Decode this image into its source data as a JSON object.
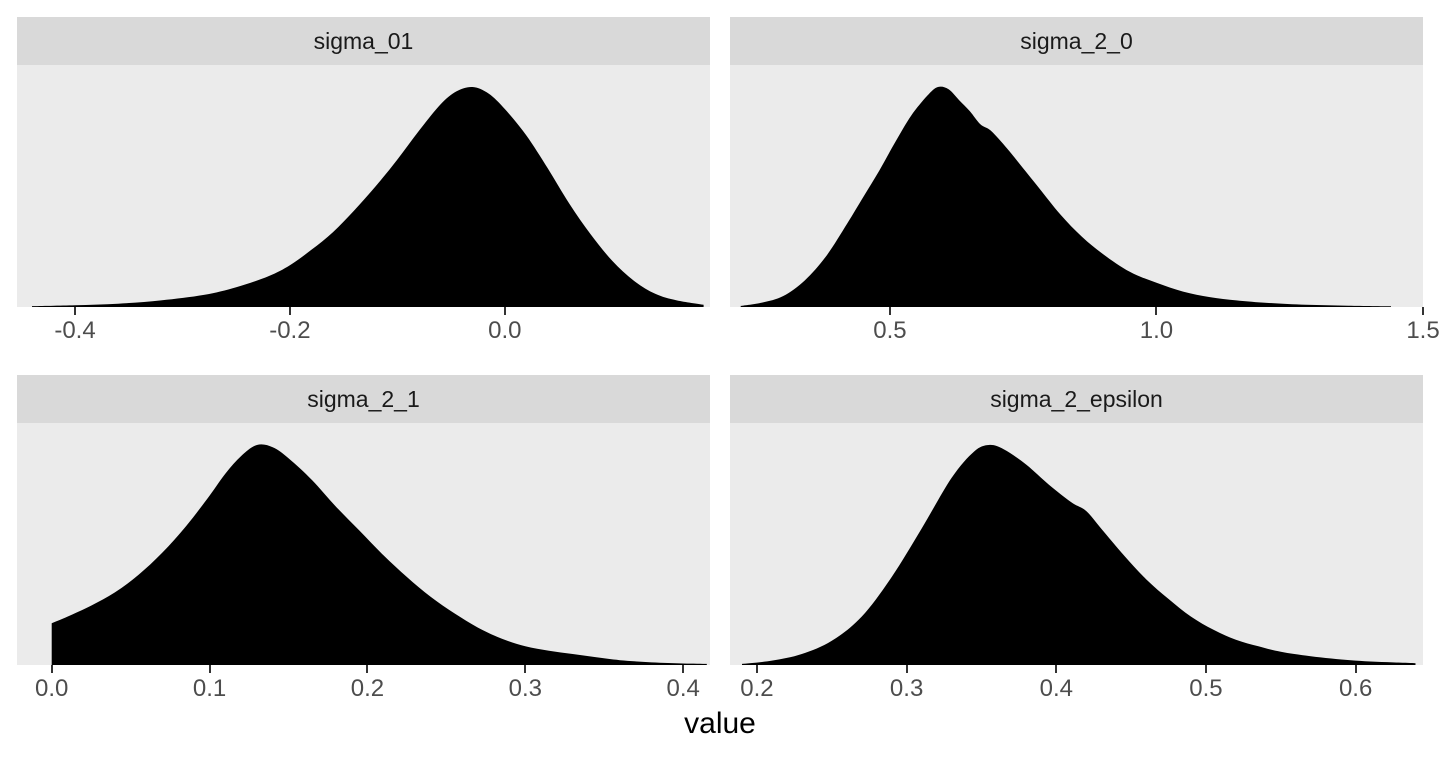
{
  "colors": {
    "strip_bg": "#d9d9d9",
    "panel_bg": "#ebebeb",
    "density_fill": "#000000",
    "tick_color": "#333333",
    "tick_label_color": "#4d4d4d"
  },
  "chart_data": {
    "type": "area",
    "subtype": "faceted-density",
    "layout": "2x2 facet grid, shared x-axis title, independent x scales",
    "title": "",
    "xlabel": "value",
    "ylabel": "",
    "y_normalized": true,
    "grid": false,
    "legend": "none",
    "facets": [
      {
        "title": "sigma_01",
        "xlim": [
          -0.454,
          0.191
        ],
        "ticks": [
          -0.4,
          -0.2,
          0.0
        ],
        "tick_labels": [
          "-0.4",
          "-0.2",
          "0.0"
        ],
        "x": [
          -0.44,
          -0.4,
          -0.36,
          -0.32,
          -0.28,
          -0.25,
          -0.22,
          -0.2,
          -0.18,
          -0.16,
          -0.14,
          -0.12,
          -0.1,
          -0.08,
          -0.06,
          -0.045,
          -0.03,
          -0.015,
          0.0,
          0.02,
          0.04,
          0.06,
          0.08,
          0.1,
          0.12,
          0.14,
          0.16,
          0.185
        ],
        "density": [
          0.004,
          0.008,
          0.015,
          0.03,
          0.055,
          0.09,
          0.14,
          0.19,
          0.26,
          0.34,
          0.44,
          0.55,
          0.67,
          0.8,
          0.92,
          0.98,
          1.0,
          0.97,
          0.9,
          0.78,
          0.63,
          0.47,
          0.33,
          0.21,
          0.12,
          0.06,
          0.03,
          0.01
        ]
      },
      {
        "title": "sigma_2_0",
        "xlim": [
          0.2,
          1.5
        ],
        "ticks": [
          0.5,
          1.0,
          1.5
        ],
        "tick_labels": [
          "0.5",
          "1.0",
          "1.5"
        ],
        "x": [
          0.22,
          0.26,
          0.3,
          0.34,
          0.38,
          0.42,
          0.45,
          0.48,
          0.51,
          0.54,
          0.57,
          0.59,
          0.61,
          0.63,
          0.65,
          0.67,
          0.69,
          0.72,
          0.75,
          0.78,
          0.82,
          0.86,
          0.9,
          0.95,
          1.0,
          1.05,
          1.1,
          1.15,
          1.2,
          1.28,
          1.36,
          1.44
        ],
        "density": [
          0.005,
          0.02,
          0.05,
          0.12,
          0.23,
          0.38,
          0.5,
          0.62,
          0.75,
          0.87,
          0.96,
          1.0,
          0.99,
          0.94,
          0.89,
          0.83,
          0.8,
          0.72,
          0.63,
          0.54,
          0.42,
          0.32,
          0.24,
          0.16,
          0.11,
          0.07,
          0.045,
          0.03,
          0.02,
          0.01,
          0.006,
          0.003
        ]
      },
      {
        "title": "sigma_2_1",
        "xlim": [
          -0.022,
          0.417
        ],
        "ticks": [
          0.0,
          0.1,
          0.2,
          0.3,
          0.4
        ],
        "tick_labels": [
          "0.0",
          "0.1",
          "0.2",
          "0.3",
          "0.4"
        ],
        "x": [
          0.0,
          0.01,
          0.025,
          0.04,
          0.055,
          0.07,
          0.085,
          0.1,
          0.11,
          0.12,
          0.13,
          0.14,
          0.15,
          0.165,
          0.18,
          0.195,
          0.21,
          0.225,
          0.24,
          0.255,
          0.27,
          0.285,
          0.3,
          0.315,
          0.33,
          0.345,
          0.36,
          0.38,
          0.4,
          0.415
        ],
        "density": [
          0.19,
          0.22,
          0.27,
          0.33,
          0.41,
          0.51,
          0.63,
          0.77,
          0.87,
          0.95,
          1.0,
          0.99,
          0.94,
          0.84,
          0.72,
          0.61,
          0.5,
          0.4,
          0.31,
          0.235,
          0.17,
          0.12,
          0.085,
          0.065,
          0.05,
          0.035,
          0.022,
          0.012,
          0.007,
          0.005
        ]
      },
      {
        "title": "sigma_2_epsilon",
        "xlim": [
          0.182,
          0.645
        ],
        "ticks": [
          0.2,
          0.3,
          0.4,
          0.5,
          0.6
        ],
        "tick_labels": [
          "0.2",
          "0.3",
          "0.4",
          "0.5",
          "0.6"
        ],
        "x": [
          0.19,
          0.21,
          0.23,
          0.25,
          0.27,
          0.29,
          0.31,
          0.33,
          0.345,
          0.355,
          0.365,
          0.38,
          0.395,
          0.41,
          0.42,
          0.43,
          0.445,
          0.46,
          0.475,
          0.49,
          0.505,
          0.52,
          0.535,
          0.55,
          0.57,
          0.6,
          0.64
        ],
        "density": [
          0.005,
          0.02,
          0.05,
          0.11,
          0.22,
          0.4,
          0.62,
          0.85,
          0.97,
          1.0,
          0.98,
          0.91,
          0.82,
          0.74,
          0.7,
          0.62,
          0.5,
          0.39,
          0.3,
          0.22,
          0.16,
          0.115,
          0.085,
          0.06,
          0.04,
          0.02,
          0.008
        ]
      }
    ]
  }
}
